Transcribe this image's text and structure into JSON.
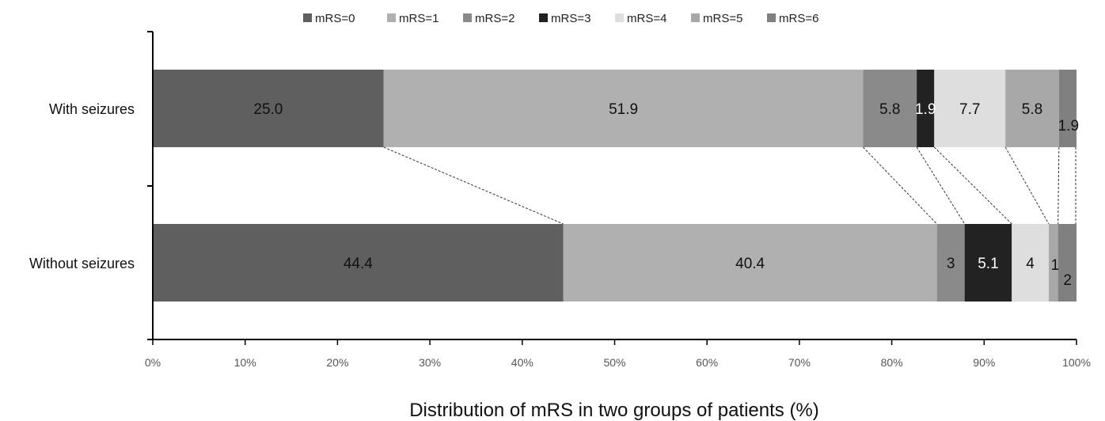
{
  "chart_data": {
    "type": "bar",
    "orientation": "horizontal",
    "stacked": true,
    "normalized": true,
    "categories": [
      "With seizures",
      "Without seizures"
    ],
    "series": [
      {
        "name": "mRS=0",
        "values": [
          25.0,
          44.4
        ],
        "labels": [
          "25.0",
          "44.4"
        ],
        "color": "#5f5f5f"
      },
      {
        "name": "mRS=1",
        "values": [
          51.9,
          40.4
        ],
        "labels": [
          "51.9",
          "40.4"
        ],
        "color": "#b0b0b0"
      },
      {
        "name": "mRS=2",
        "values": [
          5.8,
          3.0
        ],
        "labels": [
          "5.8",
          "3.0"
        ],
        "color": "#8a8a8a"
      },
      {
        "name": "mRS=3",
        "values": [
          1.9,
          5.1
        ],
        "labels": [
          "1.9",
          "5.1"
        ],
        "color": "#222222"
      },
      {
        "name": "mRS=4",
        "values": [
          7.7,
          4.0
        ],
        "labels": [
          "7.7",
          "4.0"
        ],
        "color": "#dedede"
      },
      {
        "name": "mRS=5",
        "values": [
          5.8,
          1.0
        ],
        "labels": [
          "5.8",
          "1.0"
        ],
        "color": "#a8a8a8"
      },
      {
        "name": "mRS=6",
        "values": [
          1.9,
          2.0
        ],
        "labels": [
          "1.9",
          "2.0"
        ],
        "color": "#808080"
      }
    ],
    "xlabel": "Distribution of mRS in two groups of patients (%)",
    "xlim": [
      0,
      100
    ],
    "xticks": [
      "0%",
      "10%",
      "20%",
      "30%",
      "40%",
      "50%",
      "60%",
      "70%",
      "80%",
      "90%",
      "100%"
    ],
    "legend_position": "top",
    "grid": false,
    "connector_lines": true
  }
}
